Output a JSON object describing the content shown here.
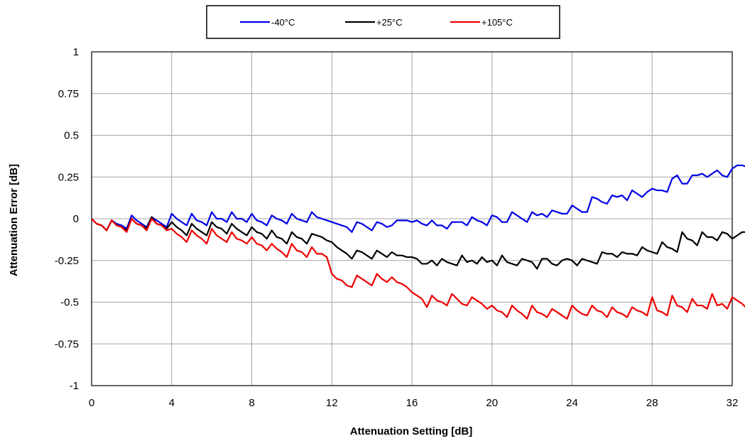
{
  "chart_data": {
    "type": "line",
    "title": "",
    "xlabel": "Attenuation Setting [dB]",
    "ylabel": "Attenuation Error [dB]",
    "xlim": [
      0,
      32
    ],
    "ylim": [
      -1,
      1
    ],
    "xticks": [
      "0",
      "4",
      "8",
      "12",
      "16",
      "20",
      "24",
      "28",
      "32"
    ],
    "yticks": [
      "1",
      "0.75",
      "0.5",
      "0.25",
      "0",
      "-0.25",
      "-0.5",
      "-0.75",
      "-1"
    ],
    "grid": true,
    "legend_position": "top-center",
    "step": 0.25,
    "series": [
      {
        "name": "-40°C",
        "color": "#0000e6",
        "values": [
          0.0,
          -0.03,
          -0.04,
          -0.07,
          -0.01,
          -0.03,
          -0.04,
          -0.06,
          0.02,
          -0.01,
          -0.03,
          -0.05,
          0.01,
          -0.01,
          -0.03,
          -0.05,
          0.03,
          0.0,
          -0.02,
          -0.04,
          0.03,
          -0.01,
          -0.02,
          -0.04,
          0.04,
          0.0,
          0.0,
          -0.02,
          0.04,
          0.0,
          0.0,
          -0.02,
          0.03,
          -0.01,
          -0.02,
          -0.04,
          0.02,
          0.0,
          -0.01,
          -0.03,
          0.03,
          0.0,
          -0.01,
          -0.02,
          0.04,
          0.01,
          0.0,
          -0.01,
          -0.02,
          -0.03,
          -0.04,
          -0.05,
          -0.08,
          -0.02,
          -0.03,
          -0.05,
          -0.07,
          -0.02,
          -0.03,
          -0.05,
          -0.04,
          -0.01,
          -0.01,
          -0.01,
          -0.02,
          -0.01,
          -0.03,
          -0.04,
          -0.01,
          -0.04,
          -0.04,
          -0.06,
          -0.02,
          -0.02,
          -0.02,
          -0.04,
          0.01,
          -0.01,
          -0.02,
          -0.04,
          0.02,
          0.01,
          -0.02,
          -0.02,
          0.04,
          0.02,
          0.0,
          -0.02,
          0.04,
          0.02,
          0.03,
          0.01,
          0.05,
          0.04,
          0.03,
          0.03,
          0.08,
          0.06,
          0.04,
          0.04,
          0.13,
          0.12,
          0.1,
          0.09,
          0.14,
          0.13,
          0.14,
          0.11,
          0.17,
          0.15,
          0.13,
          0.16,
          0.18,
          0.17,
          0.17,
          0.16,
          0.24,
          0.26,
          0.21,
          0.21,
          0.26,
          0.26,
          0.27,
          0.25,
          0.27,
          0.29,
          0.26,
          0.25,
          0.3,
          0.32,
          0.32,
          0.31
        ]
      },
      {
        "name": "+25°C",
        "color": "#000000",
        "values": [
          0.0,
          -0.03,
          -0.04,
          -0.07,
          -0.01,
          -0.04,
          -0.05,
          -0.07,
          0.0,
          -0.03,
          -0.04,
          -0.06,
          0.01,
          -0.03,
          -0.04,
          -0.06,
          -0.02,
          -0.05,
          -0.07,
          -0.1,
          -0.03,
          -0.06,
          -0.08,
          -0.1,
          -0.02,
          -0.05,
          -0.06,
          -0.09,
          -0.03,
          -0.06,
          -0.08,
          -0.1,
          -0.05,
          -0.08,
          -0.09,
          -0.12,
          -0.07,
          -0.11,
          -0.12,
          -0.15,
          -0.08,
          -0.11,
          -0.12,
          -0.15,
          -0.09,
          -0.1,
          -0.11,
          -0.13,
          -0.14,
          -0.17,
          -0.19,
          -0.21,
          -0.24,
          -0.19,
          -0.2,
          -0.22,
          -0.24,
          -0.19,
          -0.21,
          -0.23,
          -0.2,
          -0.22,
          -0.22,
          -0.23,
          -0.23,
          -0.24,
          -0.27,
          -0.27,
          -0.25,
          -0.28,
          -0.24,
          -0.26,
          -0.27,
          -0.28,
          -0.22,
          -0.26,
          -0.25,
          -0.27,
          -0.23,
          -0.26,
          -0.25,
          -0.28,
          -0.22,
          -0.26,
          -0.27,
          -0.28,
          -0.24,
          -0.25,
          -0.26,
          -0.3,
          -0.24,
          -0.24,
          -0.27,
          -0.28,
          -0.25,
          -0.24,
          -0.25,
          -0.28,
          -0.24,
          -0.25,
          -0.26,
          -0.27,
          -0.2,
          -0.21,
          -0.21,
          -0.23,
          -0.2,
          -0.21,
          -0.21,
          -0.22,
          -0.17,
          -0.19,
          -0.2,
          -0.21,
          -0.14,
          -0.17,
          -0.18,
          -0.2,
          -0.08,
          -0.12,
          -0.13,
          -0.16,
          -0.08,
          -0.11,
          -0.11,
          -0.13,
          -0.08,
          -0.09,
          -0.12,
          -0.1,
          -0.08,
          -0.08,
          -0.11,
          -0.12
        ]
      },
      {
        "name": "+105°C",
        "color": "#ee0000",
        "values": [
          0.0,
          -0.03,
          -0.04,
          -0.07,
          -0.01,
          -0.04,
          -0.05,
          -0.08,
          0.0,
          -0.03,
          -0.04,
          -0.07,
          0.0,
          -0.03,
          -0.04,
          -0.07,
          -0.06,
          -0.09,
          -0.11,
          -0.14,
          -0.07,
          -0.1,
          -0.12,
          -0.15,
          -0.06,
          -0.1,
          -0.12,
          -0.14,
          -0.08,
          -0.12,
          -0.13,
          -0.15,
          -0.11,
          -0.15,
          -0.16,
          -0.19,
          -0.15,
          -0.18,
          -0.2,
          -0.23,
          -0.15,
          -0.19,
          -0.2,
          -0.23,
          -0.17,
          -0.21,
          -0.21,
          -0.23,
          -0.33,
          -0.36,
          -0.37,
          -0.4,
          -0.41,
          -0.34,
          -0.36,
          -0.38,
          -0.4,
          -0.33,
          -0.36,
          -0.38,
          -0.35,
          -0.38,
          -0.39,
          -0.41,
          -0.44,
          -0.46,
          -0.48,
          -0.53,
          -0.46,
          -0.49,
          -0.5,
          -0.52,
          -0.45,
          -0.48,
          -0.51,
          -0.52,
          -0.47,
          -0.49,
          -0.51,
          -0.54,
          -0.52,
          -0.55,
          -0.56,
          -0.59,
          -0.52,
          -0.55,
          -0.57,
          -0.6,
          -0.52,
          -0.56,
          -0.57,
          -0.59,
          -0.54,
          -0.56,
          -0.58,
          -0.6,
          -0.52,
          -0.55,
          -0.57,
          -0.58,
          -0.52,
          -0.55,
          -0.56,
          -0.59,
          -0.53,
          -0.56,
          -0.57,
          -0.59,
          -0.53,
          -0.55,
          -0.56,
          -0.58,
          -0.47,
          -0.55,
          -0.56,
          -0.58,
          -0.46,
          -0.52,
          -0.53,
          -0.56,
          -0.48,
          -0.52,
          -0.52,
          -0.54,
          -0.45,
          -0.52,
          -0.51,
          -0.54,
          -0.47,
          -0.49,
          -0.51,
          -0.54
        ]
      }
    ]
  }
}
